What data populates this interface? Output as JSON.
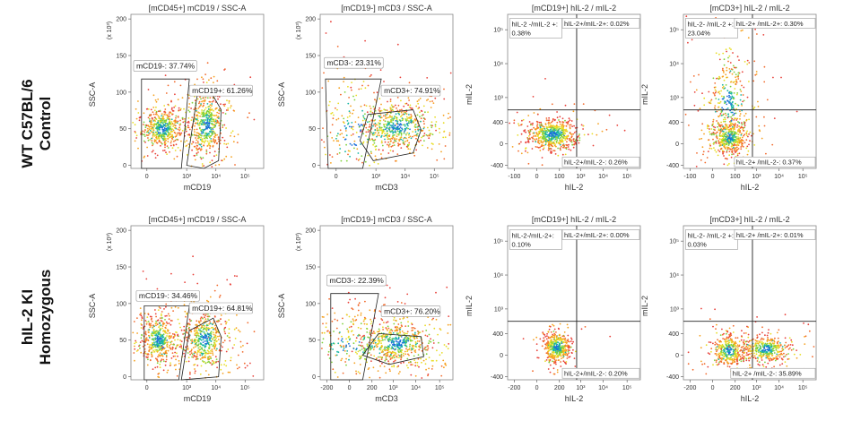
{
  "row_labels": [
    [
      "WT C57BL/6",
      "Control"
    ],
    [
      "hIL-2 KI",
      "Homozygous"
    ]
  ],
  "chart_data": [
    {
      "type": "scatter",
      "title": "[mCD45+] mCD19 / SSC-A",
      "xlabel": "mCD19",
      "ylabel": "SSC-A",
      "y_exponent": "(x 10³)",
      "x_ticks": [
        "0",
        "10³",
        "10⁴",
        "10⁵"
      ],
      "y_ticks": [
        "0",
        "50",
        "100",
        "150",
        "200"
      ],
      "ylim": [
        0,
        200
      ],
      "gates": [
        {
          "label": "mCD19-: 37.74%",
          "value": 37.74
        },
        {
          "label": "mCD19+: 61.26%",
          "value": 61.26
        }
      ]
    },
    {
      "type": "scatter",
      "title": "[mCD19-] mCD3 / SSC-A",
      "xlabel": "mCD3",
      "ylabel": "SSC-A",
      "y_exponent": "(x 10³)",
      "x_ticks": [
        "0",
        "10³",
        "10⁴",
        "10⁵"
      ],
      "y_ticks": [
        "0",
        "50",
        "100",
        "150",
        "200"
      ],
      "ylim": [
        0,
        200
      ],
      "gates": [
        {
          "label": "mCD3-: 23.31%",
          "value": 23.31
        },
        {
          "label": "mCD3+: 74.91%",
          "value": 74.91
        }
      ]
    },
    {
      "type": "scatter",
      "title": "[mCD19+] hIL-2 / mIL-2",
      "xlabel": "hIL-2",
      "ylabel": "mIL-2",
      "x_ticks": [
        "-100",
        "0",
        "100",
        "10³",
        "10⁴",
        "10⁵"
      ],
      "y_ticks": [
        "-400",
        "0",
        "400",
        "10³",
        "10⁴",
        "10⁵"
      ],
      "quadrants": [
        {
          "label": "hIL-2 -/mIL-2 +: 0.38%",
          "value": 0.38
        },
        {
          "label": "hIL-2+/mIL-2+: 0.02%",
          "value": 0.02
        },
        {
          "label": "hIL-2+/mIL-2-: 0.26%",
          "value": 0.26
        }
      ]
    },
    {
      "type": "scatter",
      "title": "[mCD3+] hIL-2 / mIL-2",
      "xlabel": "hIL-2",
      "ylabel": "mIL-2",
      "x_ticks": [
        "-100",
        "0",
        "100",
        "10³",
        "10⁴",
        "10⁵"
      ],
      "y_ticks": [
        "-400",
        "0",
        "400",
        "10³",
        "10⁴",
        "10⁵"
      ],
      "quadrants": [
        {
          "label": "hIL-2- /mIL-2 +: 23.04%",
          "value": 23.04
        },
        {
          "label": "hIL-2+ /mIL-2+: 0.30%",
          "value": 0.3
        },
        {
          "label": "hIL-2+ /mIL-2-: 0.37%",
          "value": 0.37
        }
      ]
    },
    {
      "type": "scatter",
      "title": "[mCD45+] mCD19 / SSC-A",
      "xlabel": "mCD19",
      "ylabel": "SSC-A",
      "y_exponent": "(x 10³)",
      "x_ticks": [
        "0",
        "10³",
        "10⁴",
        "10⁵"
      ],
      "y_ticks": [
        "0",
        "50",
        "100",
        "150",
        "200"
      ],
      "ylim": [
        0,
        200
      ],
      "gates": [
        {
          "label": "mCD19-: 34.46%",
          "value": 34.46
        },
        {
          "label": "mCD19+: 64.81%",
          "value": 64.81
        }
      ]
    },
    {
      "type": "scatter",
      "title": "[mCD19-] mCD3 / SSC-A",
      "xlabel": "mCD3",
      "ylabel": "SSC-A",
      "y_exponent": "(x 10³)",
      "x_ticks": [
        "-200",
        "0",
        "200",
        "10³",
        "10⁴",
        "10⁵"
      ],
      "y_ticks": [
        "0",
        "50",
        "100",
        "150",
        "200"
      ],
      "ylim": [
        0,
        200
      ],
      "gates": [
        {
          "label": "mCD3-: 22.39%",
          "value": 22.39
        },
        {
          "label": "mCD3+: 76.20%",
          "value": 76.2
        }
      ]
    },
    {
      "type": "scatter",
      "title": "[mCD19+] hIL-2 / mIL-2",
      "xlabel": "hIL-2",
      "ylabel": "mIL-2",
      "x_ticks": [
        "-200",
        "0",
        "200",
        "10³",
        "10⁴",
        "10⁵"
      ],
      "y_ticks": [
        "-400",
        "0",
        "400",
        "10³",
        "10⁴",
        "10⁵"
      ],
      "quadrants": [
        {
          "label": "hIL-2-/mIL-2+: 0.10%",
          "value": 0.1
        },
        {
          "label": "hIL-2+/mIL-2+: 0.00%",
          "value": 0.0
        },
        {
          "label": "hIL-2+/mIL-2-: 0.20%",
          "value": 0.2
        }
      ]
    },
    {
      "type": "scatter",
      "title": "[mCD3+] hIL-2 / mIL-2",
      "xlabel": "hIL-2",
      "ylabel": "mIL-2",
      "x_ticks": [
        "-200",
        "0",
        "200",
        "10³",
        "10⁴",
        "10⁵"
      ],
      "y_ticks": [
        "-400",
        "0",
        "400",
        "10³",
        "10⁴",
        "10⁵"
      ],
      "quadrants": [
        {
          "label": "hIL-2- /mIL-2 +: 0.03%",
          "value": 0.03
        },
        {
          "label": "hIL-2+ /mIL-2+: 0.01%",
          "value": 0.01
        },
        {
          "label": "hIL-2+ /mIL-2-: 35.89%",
          "value": 35.89
        }
      ]
    }
  ]
}
